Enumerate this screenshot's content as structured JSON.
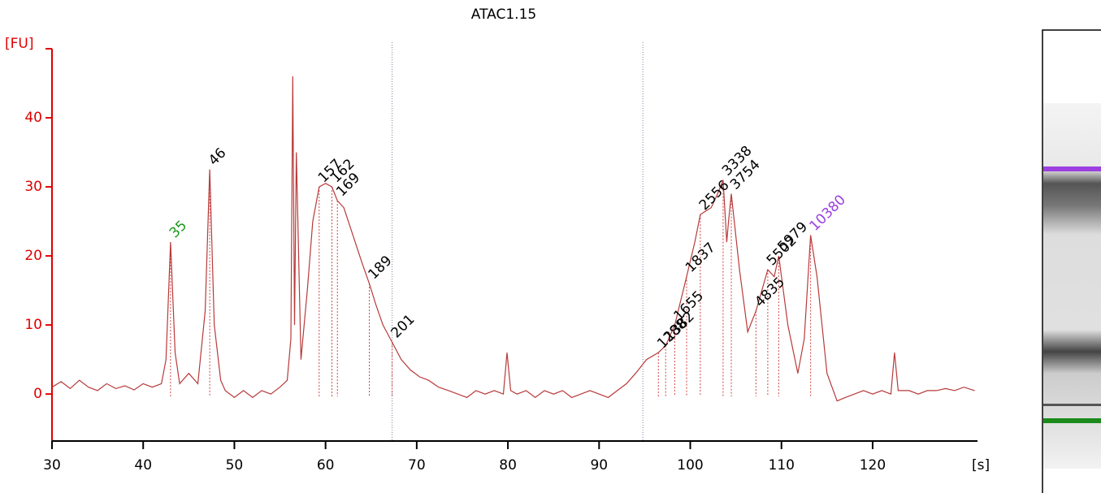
{
  "chart_data": {
    "type": "line",
    "title": "ATAC1.15",
    "y_label": "[FU]",
    "x_label": "[s]",
    "xlim": [
      30,
      131.5
    ],
    "ylim": [
      -6.8,
      50
    ],
    "xticks": [
      30,
      40,
      50,
      60,
      70,
      80,
      90,
      100,
      110,
      120
    ],
    "yticks": [
      0,
      10,
      20,
      30,
      40
    ],
    "axis_color": "#e00000",
    "line_color": "#b83a3a",
    "x": [
      30,
      31,
      32,
      33,
      34,
      35,
      36,
      37,
      38,
      39,
      40,
      41,
      42,
      42.5,
      43.0,
      43.5,
      44,
      45,
      46,
      46.8,
      47.3,
      47.8,
      48.5,
      49,
      50,
      51,
      52,
      53,
      54,
      55,
      55.8,
      56.2,
      56.4,
      56.6,
      56.8,
      57.3,
      58,
      58.6,
      59.3,
      60,
      60.7,
      61.3,
      62,
      63,
      64,
      64.8,
      65.5,
      66.3,
      67.3,
      68.3,
      69.3,
      70.3,
      71.3,
      72.4,
      73.5,
      74.5,
      75.5,
      76.5,
      77.5,
      78.5,
      79.5,
      79.9,
      80.3,
      81,
      82,
      83,
      84,
      85,
      86,
      87,
      88,
      89,
      90,
      91,
      92,
      93,
      94,
      95.2,
      96.5,
      97.3,
      98.3,
      99.6,
      100.5,
      101.1,
      102.3,
      103,
      103.6,
      104.0,
      104.2,
      104.5,
      105.4,
      106.3,
      107.2,
      108.5,
      109.2,
      109.7,
      110.7,
      111.8,
      112.5,
      113.2,
      113.9,
      115.0,
      116.1,
      117,
      118,
      119,
      120,
      121,
      122,
      122.4,
      122.8,
      124,
      125,
      126,
      127,
      128,
      129,
      130,
      131.2
    ],
    "values": [
      1,
      1.8,
      0.8,
      2,
      1,
      0.5,
      1.5,
      0.8,
      1.2,
      0.6,
      1.5,
      1,
      1.5,
      5,
      22,
      6,
      1.5,
      3,
      1.5,
      12,
      32.5,
      10,
      2,
      0.5,
      -0.5,
      0.5,
      -0.5,
      0.5,
      0,
      1,
      2,
      8,
      46,
      10,
      35,
      5,
      15,
      25,
      30,
      30.5,
      30,
      28,
      27,
      23,
      19,
      16,
      13,
      10,
      7.5,
      5,
      3.5,
      2.5,
      2,
      1,
      0.5,
      0,
      -0.5,
      0.5,
      0,
      0.5,
      0,
      6,
      0.5,
      0,
      0.5,
      -0.5,
      0.5,
      0,
      0.5,
      -0.5,
      0,
      0.5,
      0,
      -0.5,
      0.5,
      1.5,
      3,
      5,
      6,
      7,
      10,
      17,
      22,
      26,
      27,
      29,
      31,
      22,
      25,
      29,
      18,
      9,
      12,
      18,
      17,
      20,
      10,
      3,
      8,
      23,
      17,
      3,
      -1,
      -0.5,
      0,
      0.5,
      0,
      0.5,
      0,
      6,
      0.5,
      0.5,
      0,
      0.5,
      0.5,
      0.8,
      0.5,
      1,
      0.5
    ],
    "region_lines": [
      67.3,
      94.8
    ],
    "peaks": [
      {
        "label": "35",
        "x": 43.0,
        "y": 22,
        "color": "#1a9a1a"
      },
      {
        "label": "46",
        "x": 47.3,
        "y": 32.5,
        "color": "#000000"
      },
      {
        "label": "157",
        "x": 59.3,
        "y": 30,
        "color": "#000000"
      },
      {
        "label": "162",
        "x": 60.7,
        "y": 30,
        "color": "#000000"
      },
      {
        "label": "169",
        "x": 61.3,
        "y": 28,
        "color": "#000000"
      },
      {
        "label": "189",
        "x": 64.8,
        "y": 16,
        "color": "#000000"
      },
      {
        "label": "201",
        "x": 67.3,
        "y": 7.5,
        "color": "#000000"
      },
      {
        "label": "1288",
        "x": 96.5,
        "y": 6,
        "color": "#000000"
      },
      {
        "label": "1382",
        "x": 97.3,
        "y": 7,
        "color": "#000000"
      },
      {
        "label": "1655",
        "x": 98.3,
        "y": 10,
        "color": "#000000"
      },
      {
        "label": "1837",
        "x": 99.6,
        "y": 17,
        "color": "#000000"
      },
      {
        "label": "2556",
        "x": 101.1,
        "y": 26,
        "color": "#000000"
      },
      {
        "label": "3338",
        "x": 103.6,
        "y": 31,
        "color": "#000000"
      },
      {
        "label": "3754",
        "x": 104.5,
        "y": 29,
        "color": "#000000"
      },
      {
        "label": "4835",
        "x": 107.2,
        "y": 12,
        "color": "#000000"
      },
      {
        "label": "5502",
        "x": 108.5,
        "y": 18,
        "color": "#000000"
      },
      {
        "label": "5979",
        "x": 109.7,
        "y": 20,
        "color": "#000000"
      },
      {
        "label": "10380",
        "x": 113.2,
        "y": 23,
        "color": "#9b3fe0"
      }
    ]
  }
}
